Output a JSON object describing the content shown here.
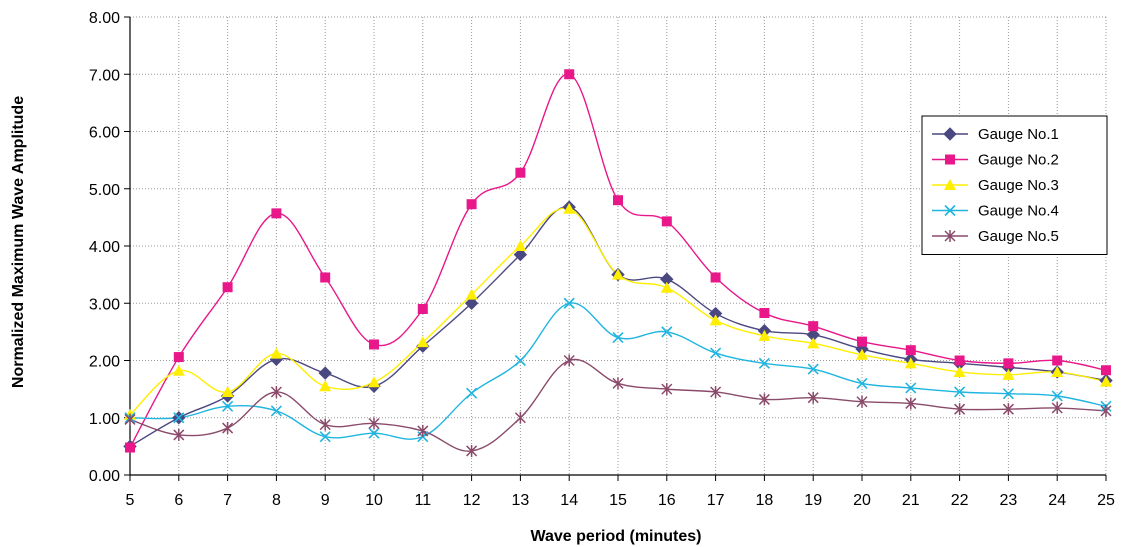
{
  "chart_data": {
    "type": "line",
    "title": "",
    "xlabel": "Wave period (minutes)",
    "ylabel": "Normalized Maximum Wave Amplitude",
    "x": [
      5,
      6,
      7,
      8,
      9,
      10,
      11,
      12,
      13,
      14,
      15,
      16,
      17,
      18,
      19,
      20,
      21,
      22,
      23,
      24,
      25
    ],
    "xlim": [
      5,
      25
    ],
    "ylim": [
      0,
      8
    ],
    "yticks": [
      "0.00",
      "1.00",
      "2.00",
      "3.00",
      "4.00",
      "5.00",
      "6.00",
      "7.00",
      "8.00"
    ],
    "xticks": [
      "5",
      "6",
      "7",
      "8",
      "9",
      "10",
      "11",
      "12",
      "13",
      "14",
      "15",
      "16",
      "17",
      "18",
      "19",
      "20",
      "21",
      "22",
      "23",
      "24",
      "25"
    ],
    "grid": true,
    "legend_position": "top-right",
    "series": [
      {
        "name": "Gauge No.1",
        "color": "#4a4880",
        "marker": "diamond",
        "values": [
          0.5,
          1.0,
          1.38,
          2.02,
          1.78,
          1.55,
          2.25,
          3.0,
          3.85,
          4.68,
          3.5,
          3.42,
          2.82,
          2.52,
          2.45,
          2.2,
          2.02,
          1.95,
          1.88,
          1.8,
          1.65
        ]
      },
      {
        "name": "Gauge No.2",
        "color": "#e8178a",
        "marker": "square",
        "values": [
          0.48,
          2.06,
          3.28,
          4.57,
          3.45,
          2.28,
          2.9,
          4.73,
          5.28,
          7.0,
          4.8,
          4.43,
          3.45,
          2.83,
          2.6,
          2.33,
          2.18,
          2.0,
          1.95,
          2.0,
          1.83
        ]
      },
      {
        "name": "Gauge No.3",
        "color": "#ffee00",
        "marker": "triangle",
        "values": [
          1.05,
          1.82,
          1.45,
          2.12,
          1.55,
          1.62,
          2.32,
          3.15,
          4.0,
          4.65,
          3.5,
          3.27,
          2.7,
          2.43,
          2.3,
          2.1,
          1.95,
          1.8,
          1.75,
          1.8,
          1.63
        ]
      },
      {
        "name": "Gauge No.4",
        "color": "#1fb5e0",
        "marker": "x",
        "values": [
          1.0,
          1.0,
          1.2,
          1.12,
          0.67,
          0.73,
          0.67,
          1.43,
          2.0,
          3.0,
          2.4,
          2.5,
          2.13,
          1.95,
          1.85,
          1.6,
          1.52,
          1.45,
          1.42,
          1.38,
          1.2
        ]
      },
      {
        "name": "Gauge No.5",
        "color": "#8a4a6a",
        "marker": "star",
        "values": [
          0.97,
          0.7,
          0.82,
          1.45,
          0.88,
          0.9,
          0.77,
          0.42,
          1.0,
          2.0,
          1.6,
          1.5,
          1.45,
          1.32,
          1.35,
          1.28,
          1.25,
          1.15,
          1.15,
          1.17,
          1.12
        ]
      }
    ]
  }
}
